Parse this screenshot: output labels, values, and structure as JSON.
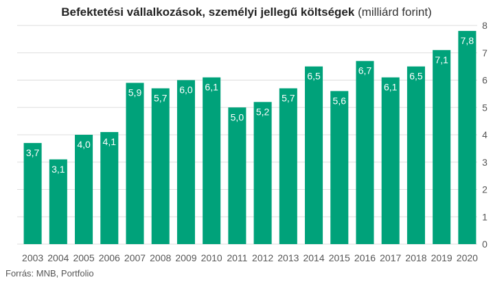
{
  "title": "Befektetési vállalkozások, személyi jellegű költségek",
  "unit": "(milliárd forint)",
  "source": "Forrás: MNB, Portfolio",
  "colors": {
    "bar": "#00a27a",
    "grid": "#dddddd",
    "label": "#ffffff",
    "axis_text": "#555555"
  },
  "chart_data": {
    "type": "bar",
    "title": "Befektetési vállalkozások, személyi jellegű költségek (milliárd forint)",
    "categories": [
      "2003",
      "2004",
      "2005",
      "2006",
      "2007",
      "2008",
      "2009",
      "2010",
      "2011",
      "2012",
      "2013",
      "2014",
      "2015",
      "2016",
      "2017",
      "2018",
      "2019",
      "2020"
    ],
    "values": [
      3.7,
      3.1,
      4.0,
      4.1,
      5.9,
      5.7,
      6.0,
      6.1,
      5.0,
      5.2,
      5.7,
      6.5,
      5.6,
      6.7,
      6.1,
      6.5,
      7.1,
      7.8
    ],
    "data_labels": [
      "3,7",
      "3,1",
      "4,0",
      "4,1",
      "5,9",
      "5,7",
      "6,0",
      "6,1",
      "5,0",
      "5,2",
      "5,7",
      "6,5",
      "5,6",
      "6,7",
      "6,1",
      "6,5",
      "7,1",
      "7,8"
    ],
    "y_ticks": [
      "0",
      "1",
      "2",
      "3",
      "4",
      "5",
      "6",
      "7",
      "8"
    ],
    "ylim": [
      0,
      8
    ],
    "y_axis_side": "right",
    "grid": true,
    "xlabel": "",
    "ylabel": ""
  }
}
